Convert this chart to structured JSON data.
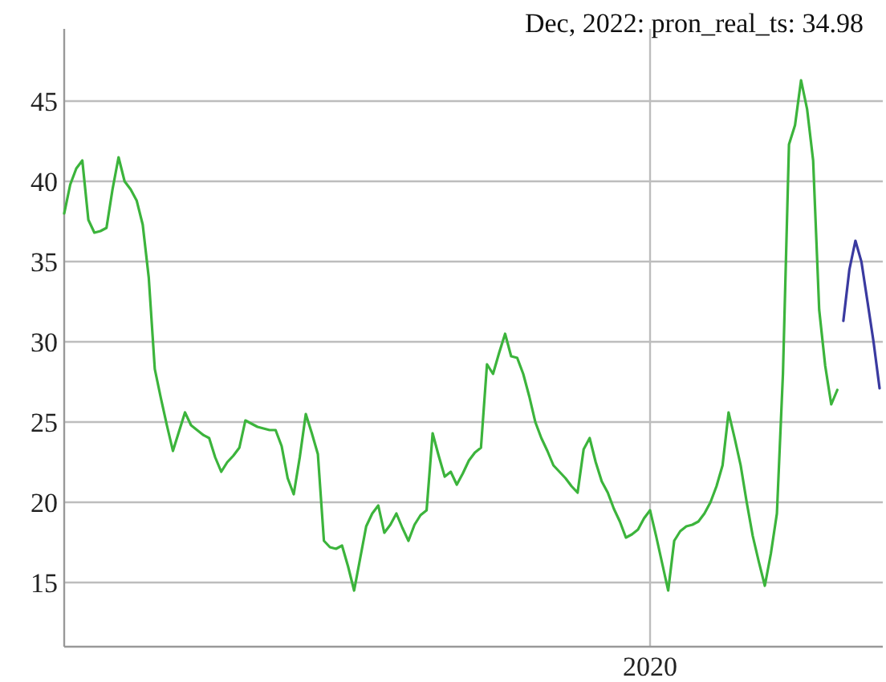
{
  "chart_data": {
    "type": "line",
    "ylim": [
      11,
      49.5
    ],
    "yticks": [
      15,
      20,
      25,
      30,
      35,
      40,
      45
    ],
    "grid": true,
    "marker": "none",
    "line_style": "solid",
    "categories": [
      null,
      null,
      null,
      null,
      null,
      null,
      null,
      null,
      null,
      null,
      null,
      null,
      null,
      null,
      null,
      null,
      null,
      null,
      null,
      null,
      null,
      null,
      null,
      null,
      null,
      null,
      null,
      null,
      null,
      null,
      null,
      null,
      null,
      null,
      null,
      null,
      null,
      null,
      null,
      null,
      null,
      null,
      null,
      null,
      null,
      null,
      null,
      null,
      null,
      null,
      null,
      null,
      null,
      null,
      null,
      null,
      null,
      null,
      null,
      null,
      null,
      null,
      null,
      null,
      null,
      null,
      null,
      null,
      null,
      null,
      null,
      null,
      null,
      null,
      null,
      null,
      null,
      null,
      null,
      null,
      null,
      null,
      null,
      null,
      null,
      null,
      null,
      null,
      null,
      null,
      null,
      null,
      null,
      null,
      null,
      null,
      null,
      "2020",
      null,
      null,
      null,
      null,
      null,
      null,
      null,
      null,
      null,
      null,
      null,
      null,
      null,
      null,
      null,
      null,
      null,
      null,
      null,
      null,
      null,
      null,
      null,
      null,
      null,
      null,
      null,
      null,
      null,
      null,
      null,
      null,
      null,
      null,
      null,
      null,
      null,
      null
    ],
    "series": [
      {
        "color": "#3cb43c",
        "values": [
          38.0,
          39.8,
          40.8,
          41.3,
          37.6,
          36.8,
          36.9,
          37.1,
          39.5,
          41.5,
          40.0,
          39.5,
          38.8,
          37.3,
          34.0,
          28.3,
          26.5,
          24.8,
          23.2,
          24.4,
          25.6,
          24.8,
          24.5,
          24.2,
          24.0,
          22.8,
          21.9,
          22.5,
          22.9,
          23.4,
          25.1,
          24.9,
          24.7,
          24.6,
          24.5,
          24.5,
          23.5,
          21.5,
          20.5,
          22.8,
          25.5,
          24.3,
          23.0,
          17.6,
          17.2,
          17.1,
          17.3,
          16.0,
          14.5,
          16.5,
          18.5,
          19.3,
          19.8,
          18.1,
          18.6,
          19.3,
          18.4,
          17.6,
          18.6,
          19.2,
          19.5,
          24.3,
          22.9,
          21.6,
          21.9,
          21.1,
          21.8,
          22.6,
          23.1,
          23.4,
          28.6,
          28.0,
          29.3,
          30.5,
          29.1,
          29.0,
          28.0,
          26.6,
          25.0,
          24.0,
          23.2,
          22.3,
          21.9,
          21.5,
          21.0,
          20.6,
          23.3,
          24.0,
          22.5,
          21.3,
          20.6,
          19.6,
          18.8,
          17.8,
          18.0,
          18.3,
          19.0,
          19.5,
          17.9,
          16.2,
          14.5,
          17.6,
          18.2,
          18.5,
          18.6,
          18.8,
          19.3,
          20.0,
          21.0,
          22.3,
          25.6,
          24.0,
          22.3,
          20.0,
          17.9,
          16.3,
          14.8,
          16.8,
          19.3,
          28.0,
          42.3,
          43.5,
          46.3,
          44.5,
          41.3,
          32.0,
          28.5,
          26.1,
          27.0,
          null,
          null,
          null,
          null,
          null,
          null,
          null
        ]
      },
      {
        "color": "#3a3aa0",
        "values": [
          null,
          null,
          null,
          null,
          null,
          null,
          null,
          null,
          null,
          null,
          null,
          null,
          null,
          null,
          null,
          null,
          null,
          null,
          null,
          null,
          null,
          null,
          null,
          null,
          null,
          null,
          null,
          null,
          null,
          null,
          null,
          null,
          null,
          null,
          null,
          null,
          null,
          null,
          null,
          null,
          null,
          null,
          null,
          null,
          null,
          null,
          null,
          null,
          null,
          null,
          null,
          null,
          null,
          null,
          null,
          null,
          null,
          null,
          null,
          null,
          null,
          null,
          null,
          null,
          null,
          null,
          null,
          null,
          null,
          null,
          null,
          null,
          null,
          null,
          null,
          null,
          null,
          null,
          null,
          null,
          null,
          null,
          null,
          null,
          null,
          null,
          null,
          null,
          null,
          null,
          null,
          null,
          null,
          null,
          null,
          null,
          null,
          null,
          null,
          null,
          null,
          null,
          null,
          null,
          null,
          null,
          null,
          null,
          null,
          null,
          null,
          null,
          null,
          null,
          null,
          null,
          null,
          null,
          null,
          null,
          null,
          null,
          null,
          null,
          null,
          null,
          null,
          null,
          null,
          31.3,
          34.5,
          36.3,
          34.98,
          32.5,
          30.0,
          27.1
        ]
      }
    ],
    "annotations": [
      "Dec, 2022: pron_real_ts: 34.98"
    ]
  }
}
